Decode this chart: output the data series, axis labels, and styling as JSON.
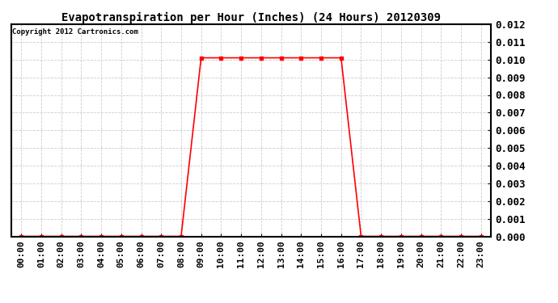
{
  "title": "Evapotranspiration per Hour (Inches) (24 Hours) 20120309",
  "copyright_text": "Copyright 2012 Cartronics.com",
  "hours": [
    0,
    1,
    2,
    3,
    4,
    5,
    6,
    7,
    8,
    9,
    10,
    11,
    12,
    13,
    14,
    15,
    16,
    17,
    18,
    19,
    20,
    21,
    22,
    23
  ],
  "values": [
    0.0,
    0.0,
    0.0,
    0.0,
    0.0,
    0.0,
    0.0,
    0.0,
    0.0,
    0.0101,
    0.0101,
    0.0101,
    0.0101,
    0.0101,
    0.0101,
    0.0101,
    0.0101,
    0.0,
    0.0,
    0.0,
    0.0,
    0.0,
    0.0,
    0.0
  ],
  "tick_labels": [
    "00:00",
    "01:00",
    "02:00",
    "03:00",
    "04:00",
    "05:00",
    "06:00",
    "07:00",
    "08:00",
    "09:00",
    "10:00",
    "11:00",
    "12:00",
    "13:00",
    "14:00",
    "15:00",
    "16:00",
    "17:00",
    "18:00",
    "19:00",
    "20:00",
    "21:00",
    "22:00",
    "23:00"
  ],
  "ylim": [
    0.0,
    0.012
  ],
  "yticks": [
    0.0,
    0.001,
    0.002,
    0.003,
    0.004,
    0.005,
    0.006,
    0.007,
    0.008,
    0.009,
    0.01,
    0.011,
    0.012
  ],
  "line_color": "red",
  "marker": "s",
  "marker_size": 2.5,
  "line_width": 1.2,
  "bg_color": "#ffffff",
  "grid_color": "#cccccc",
  "title_fontsize": 10,
  "tick_fontsize": 8,
  "ytick_fontsize": 9,
  "copyright_fontsize": 6.5,
  "fig_width": 6.9,
  "fig_height": 3.75
}
